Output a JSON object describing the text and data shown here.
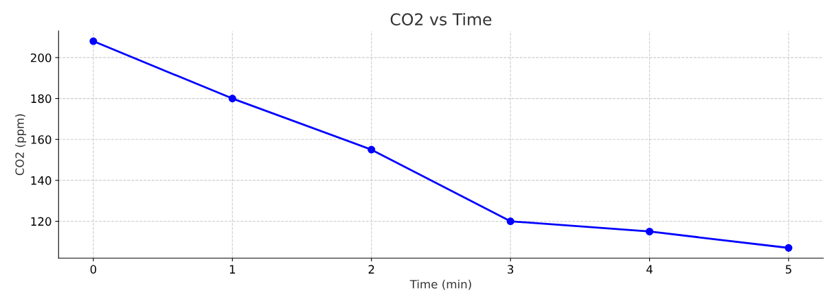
{
  "chart_data": {
    "type": "line",
    "title": "CO2 vs Time",
    "xlabel": "Time (min)",
    "ylabel": "CO2 (ppm)",
    "x": [
      0,
      1,
      2,
      3,
      4,
      5
    ],
    "series": [
      {
        "color": "#0000ff",
        "values": [
          208,
          180,
          155,
          120,
          115,
          107
        ]
      }
    ],
    "xlim": [
      -0.25,
      5.25
    ],
    "xticks": [
      0,
      1,
      2,
      3,
      4,
      5
    ],
    "ylim": [
      102,
      213
    ],
    "yticks": [
      120,
      140,
      160,
      180,
      200
    ],
    "grid": true,
    "marker": "circle",
    "line_style": "solid"
  }
}
